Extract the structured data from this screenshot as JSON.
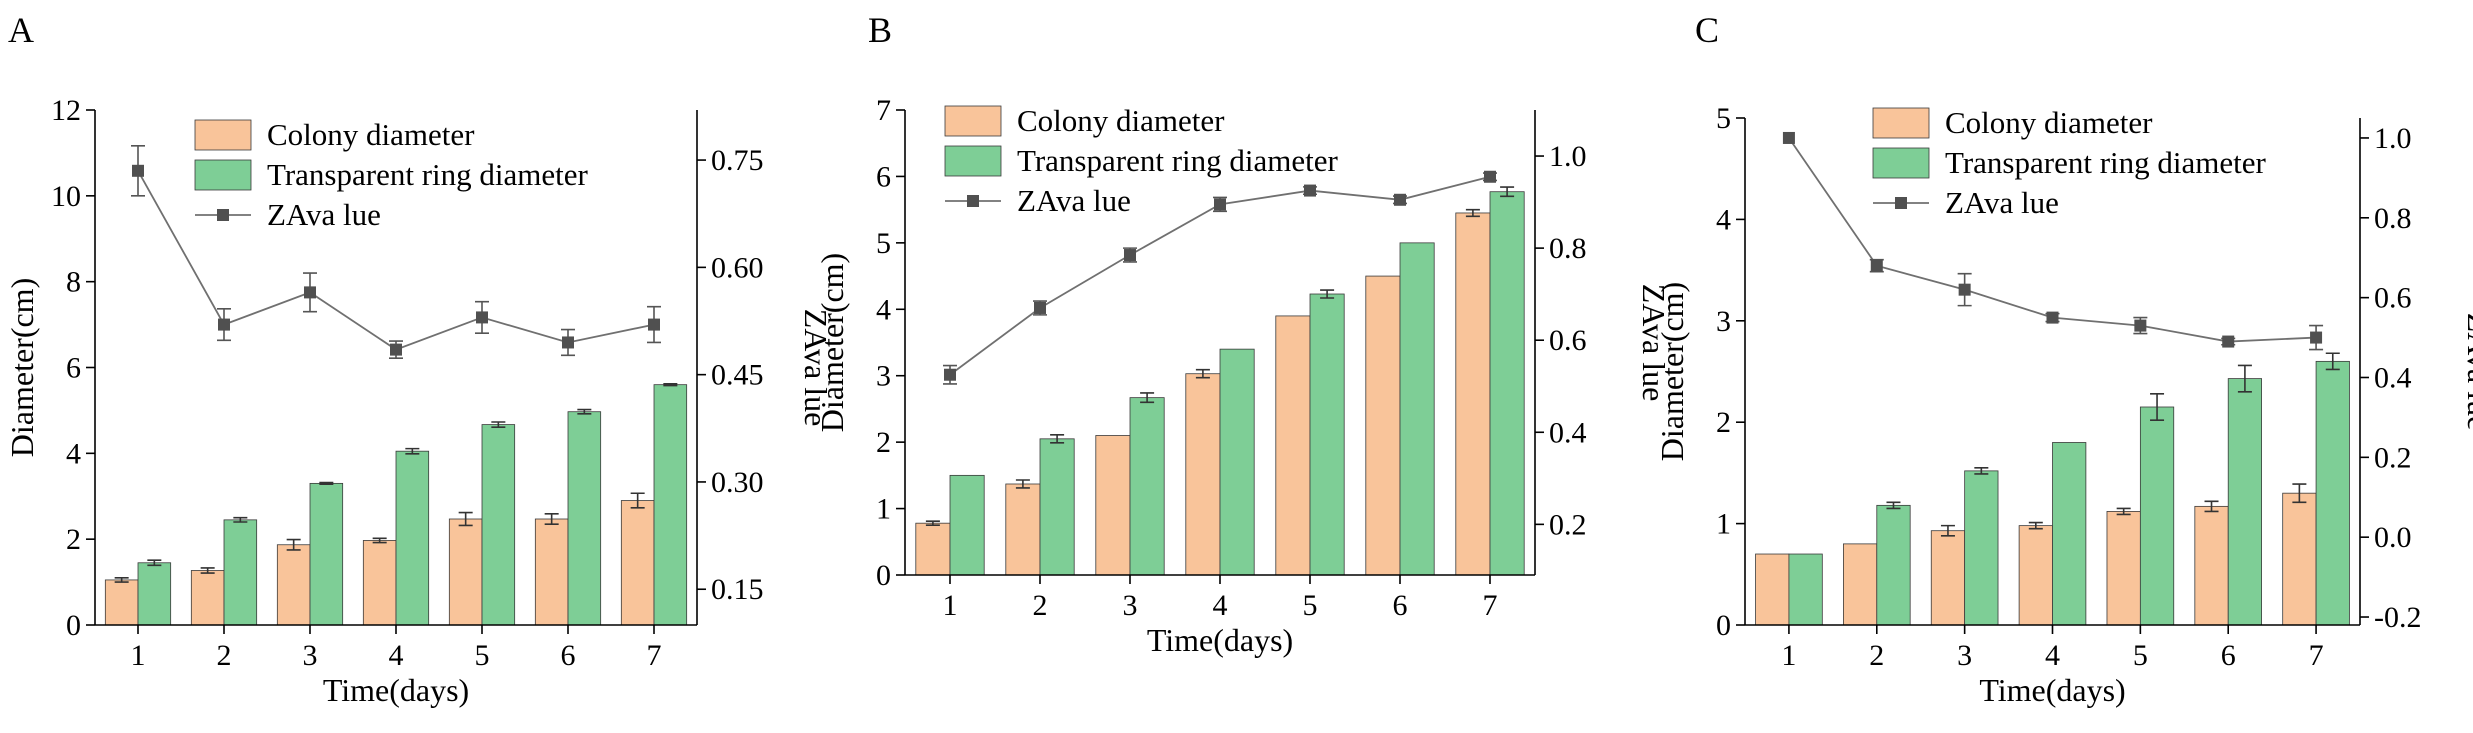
{
  "figure": {
    "legend_labels": {
      "colony": "Colony diameter",
      "ring": "Transparent ring diameter",
      "za": "ZAva lue"
    },
    "colors": {
      "colony": "#F9C49A",
      "ring": "#7ECE96",
      "line": "#707070",
      "marker": "#505050",
      "axis": "#000000"
    }
  },
  "chart_data": [
    {
      "panel": "A",
      "type": "bar",
      "categories": [
        "1",
        "2",
        "3",
        "4",
        "5",
        "6",
        "7"
      ],
      "xlabel": "Time(days)",
      "ylabel": "Diameter(cm)",
      "ylabel_right": "ZAva lue",
      "ylim": [
        0,
        12
      ],
      "yticks": [
        0,
        2,
        4,
        6,
        8,
        10,
        12
      ],
      "ylim_right": [
        0.1,
        0.82
      ],
      "yticks_right": [
        0.15,
        0.3,
        0.45,
        0.6,
        0.75
      ],
      "right_tick_decimals": 2,
      "series": [
        {
          "name": "Colony diameter",
          "kind": "bar",
          "values": [
            1.05,
            1.27,
            1.87,
            1.97,
            2.47,
            2.47,
            2.9
          ],
          "errors": [
            0.05,
            0.06,
            0.12,
            0.05,
            0.15,
            0.12,
            0.17
          ]
        },
        {
          "name": "Transparent ring diameter",
          "kind": "bar",
          "values": [
            1.45,
            2.45,
            3.3,
            4.05,
            4.67,
            4.97,
            5.6
          ],
          "errors": [
            0.06,
            0.05,
            0.02,
            0.06,
            0.06,
            0.05,
            0.02
          ]
        },
        {
          "name": "ZAva lue",
          "kind": "line",
          "axis": "right",
          "values": [
            0.735,
            0.52,
            0.565,
            0.485,
            0.53,
            0.495,
            0.52
          ],
          "errors": [
            0.035,
            0.022,
            0.027,
            0.012,
            0.022,
            0.018,
            0.025
          ]
        }
      ]
    },
    {
      "panel": "B",
      "type": "bar",
      "categories": [
        "1",
        "2",
        "3",
        "4",
        "5",
        "6",
        "7"
      ],
      "xlabel": "Time(days)",
      "ylabel": "Diameter(cm)",
      "ylabel_right": "ZAva lue",
      "ylim": [
        0,
        7
      ],
      "yticks": [
        0,
        1,
        2,
        3,
        4,
        5,
        6,
        7
      ],
      "ylim_right": [
        0.09,
        1.1
      ],
      "yticks_right": [
        0.2,
        0.4,
        0.6,
        0.8,
        1.0
      ],
      "right_tick_decimals": 1,
      "series": [
        {
          "name": "Colony diameter",
          "kind": "bar",
          "values": [
            0.78,
            1.37,
            2.1,
            3.03,
            3.9,
            4.5,
            5.45
          ],
          "errors": [
            0.03,
            0.06,
            0,
            0.06,
            0,
            0,
            0.05
          ]
        },
        {
          "name": "Transparent ring diameter",
          "kind": "bar",
          "values": [
            1.5,
            2.05,
            2.67,
            3.4,
            4.23,
            5.0,
            5.77
          ],
          "errors": [
            0,
            0.06,
            0.07,
            0,
            0.06,
            0,
            0.07
          ]
        },
        {
          "name": "ZAva lue",
          "kind": "line",
          "axis": "right",
          "values": [
            0.525,
            0.67,
            0.785,
            0.895,
            0.925,
            0.905,
            0.955
          ],
          "errors": [
            0.02,
            0.015,
            0.015,
            0.015,
            0.008,
            0.008,
            0.008
          ]
        }
      ]
    },
    {
      "panel": "C",
      "type": "bar",
      "categories": [
        "1",
        "2",
        "3",
        "4",
        "5",
        "6",
        "7"
      ],
      "xlabel": "Time(days)",
      "ylabel": "Diameter(cm)",
      "ylabel_right": "ZAva lue",
      "ylim": [
        0,
        5
      ],
      "yticks": [
        0,
        1,
        2,
        3,
        4,
        5
      ],
      "ylim_right": [
        -0.22,
        1.05
      ],
      "yticks_right": [
        -0.2,
        0.0,
        0.2,
        0.4,
        0.6,
        0.8,
        1.0
      ],
      "right_tick_decimals": 1,
      "series": [
        {
          "name": "Colony diameter",
          "kind": "bar",
          "values": [
            0.7,
            0.8,
            0.93,
            0.98,
            1.12,
            1.17,
            1.3
          ],
          "errors": [
            0,
            0,
            0.05,
            0.03,
            0.03,
            0.05,
            0.09
          ]
        },
        {
          "name": "Transparent ring diameter",
          "kind": "bar",
          "values": [
            0.7,
            1.18,
            1.52,
            1.8,
            2.15,
            2.43,
            2.6
          ],
          "errors": [
            0,
            0.03,
            0.03,
            0,
            0.13,
            0.13,
            0.08
          ]
        },
        {
          "name": "ZAva lue",
          "kind": "line",
          "axis": "right",
          "values": [
            1.0,
            0.68,
            0.62,
            0.55,
            0.53,
            0.49,
            0.5
          ],
          "errors": [
            0,
            0.015,
            0.04,
            0.01,
            0.02,
            0.008,
            0.03
          ]
        }
      ]
    }
  ]
}
